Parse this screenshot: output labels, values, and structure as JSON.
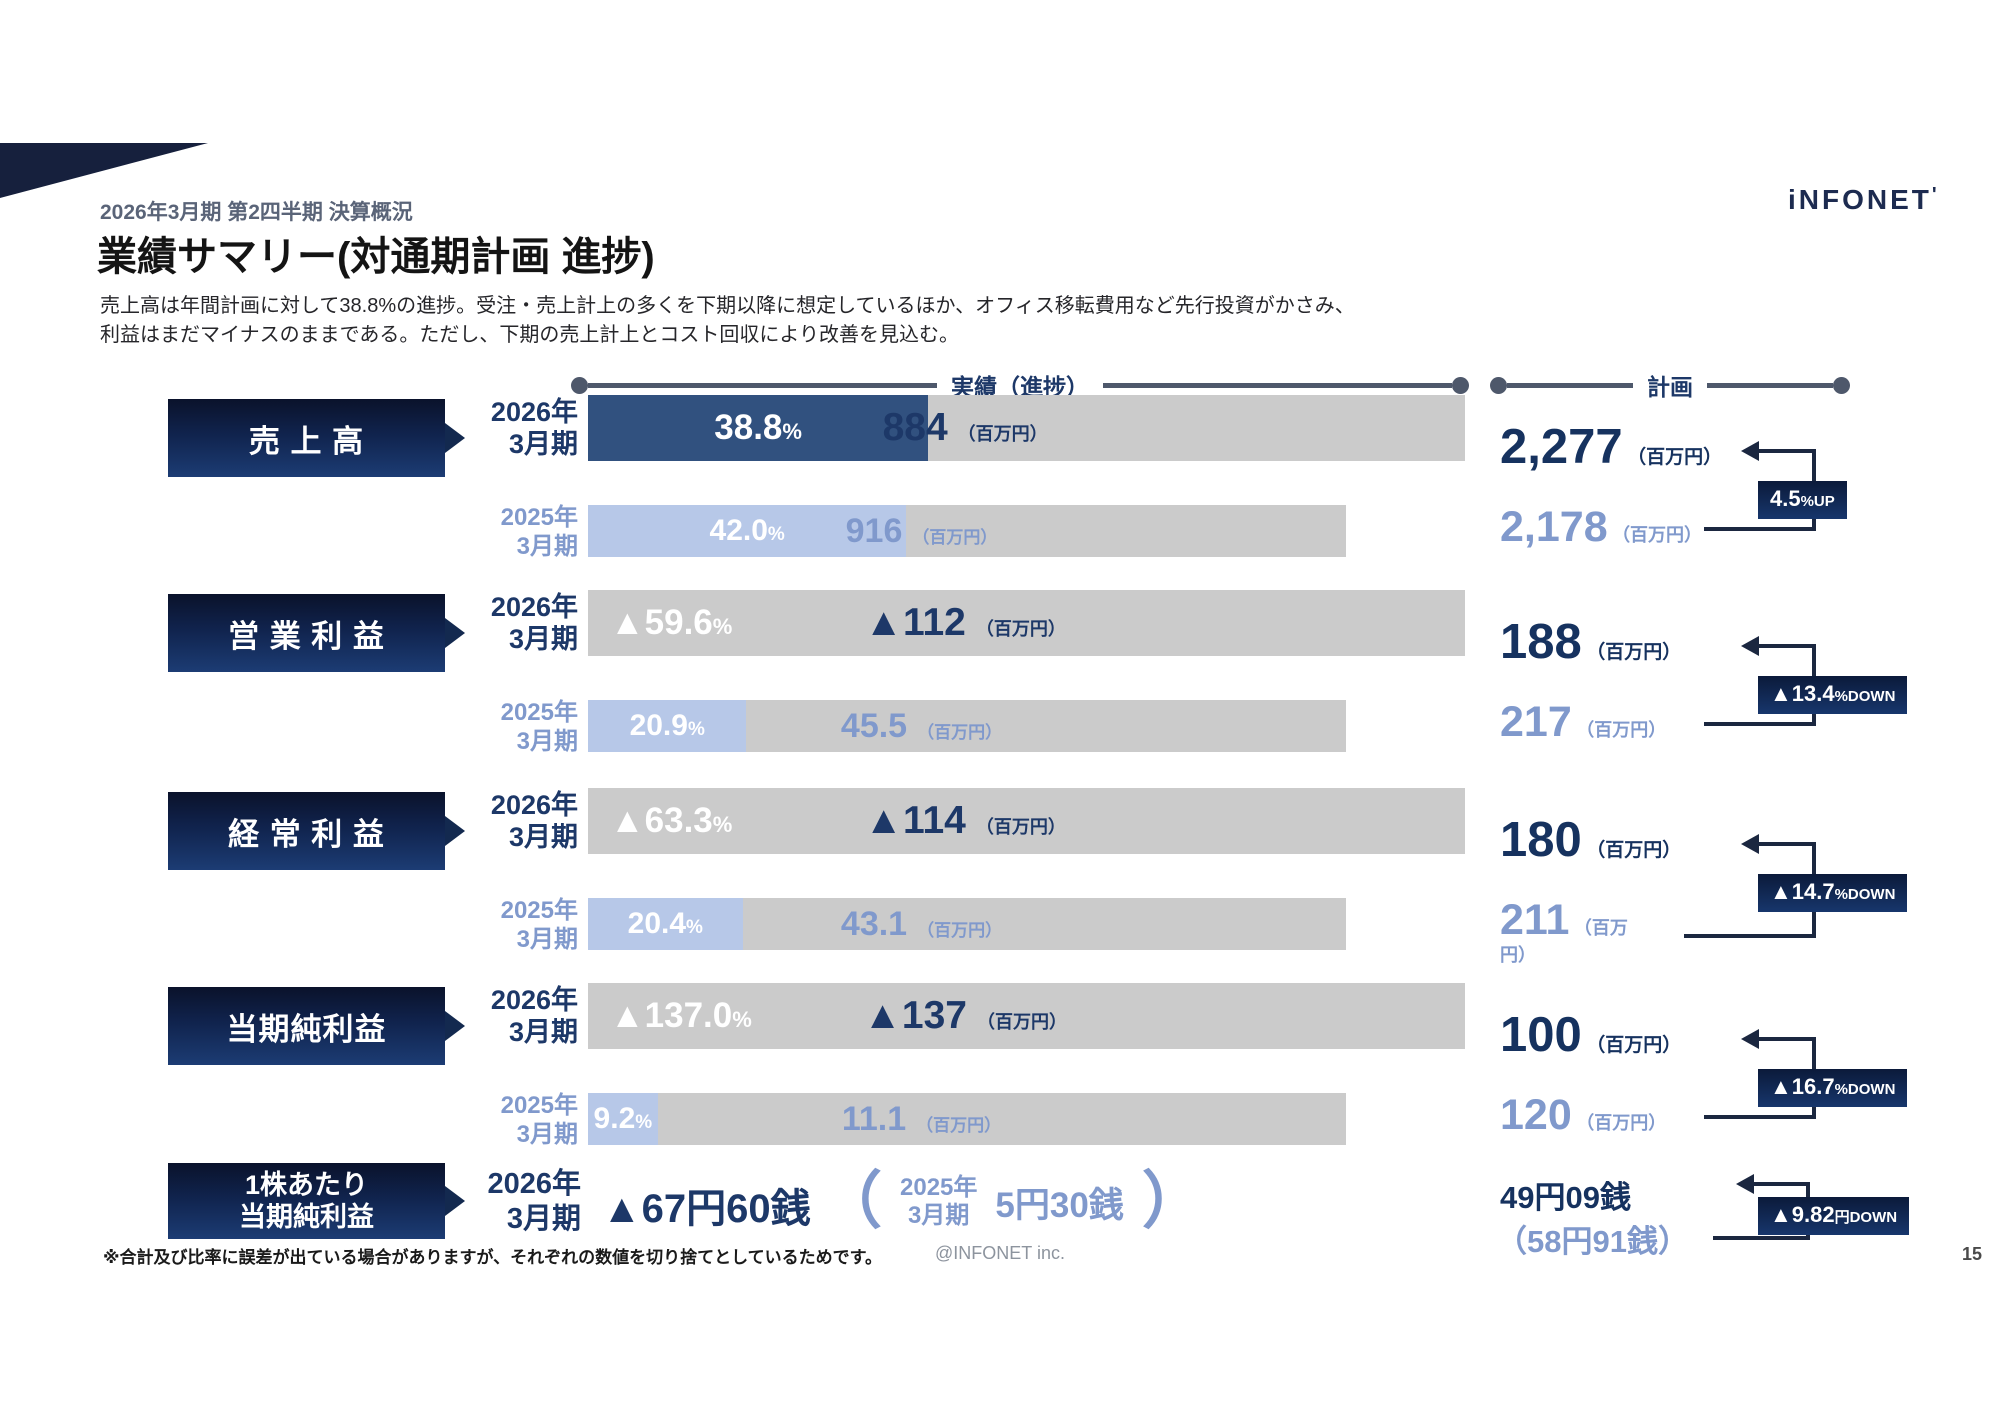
{
  "header": {
    "subtitle": "2026年3月期 第2四半期 決算概況",
    "title": "業績サマリー(対通期計画 進捗)",
    "logo": "iNFONET",
    "description_line1": "売上高は年間計画に対して38.8%の進捗。受注・売上計上の多くを下期以降に想定しているほか、オフィス移転費用など先行投資がかさみ、",
    "description_line2": "利益はまだマイナスのままである。ただし、下期の売上計上とコスト回収により改善を見込む。"
  },
  "legend": {
    "actual": "実績（進捗）",
    "plan": "計画"
  },
  "rows": [
    {
      "label": "売 上 高",
      "fy2026": {
        "year_line1": "2026年",
        "year_line2": "3月期",
        "pct": "38.8",
        "pct_unit": "%",
        "value": "884",
        "value_unit": "（百万円）",
        "fill_pct": 38.8
      },
      "fy2025": {
        "year_line1": "2025年",
        "year_line2": "3月期",
        "pct": "42.0",
        "pct_unit": "%",
        "value": "916",
        "value_unit": "（百万円）",
        "fill_pct": 42.0
      },
      "plan": {
        "current": "2,277",
        "current_unit": "（百万円）",
        "previous": "2,178",
        "previous_unit": "（百万円）"
      },
      "badge": {
        "main": "4.5",
        "suffix": "%UP"
      }
    },
    {
      "label": "営 業 利 益",
      "fy2026": {
        "year_line1": "2026年",
        "year_line2": "3月期",
        "pct": "▲59.6",
        "pct_unit": "%",
        "value": "▲112",
        "value_unit": "（百万円）",
        "fill_pct": 0
      },
      "fy2025": {
        "year_line1": "2025年",
        "year_line2": "3月期",
        "pct": "20.9",
        "pct_unit": "%",
        "value": "45.5",
        "value_unit": "（百万円）",
        "fill_pct": 20.9
      },
      "plan": {
        "current": "188",
        "current_unit": "（百万円）",
        "previous": "217",
        "previous_unit": "（百万円）"
      },
      "badge": {
        "main": "▲13.4",
        "suffix": "%DOWN"
      }
    },
    {
      "label": "経 常 利 益",
      "fy2026": {
        "year_line1": "2026年",
        "year_line2": "3月期",
        "pct": "▲63.3",
        "pct_unit": "%",
        "value": "▲114",
        "value_unit": "（百万円）",
        "fill_pct": 0
      },
      "fy2025": {
        "year_line1": "2025年",
        "year_line2": "3月期",
        "pct": "20.4",
        "pct_unit": "%",
        "value": "43.1",
        "value_unit": "（百万円）",
        "fill_pct": 20.4
      },
      "plan": {
        "current": "180",
        "current_unit": "（百万円）",
        "previous": "211",
        "previous_unit": "（百万円）"
      },
      "badge": {
        "main": "▲14.7",
        "suffix": "%DOWN"
      }
    },
    {
      "label": "当期純利益",
      "fy2026": {
        "year_line1": "2026年",
        "year_line2": "3月期",
        "pct": "▲137.0",
        "pct_unit": "%",
        "value": "▲137",
        "value_unit": "（百万円）",
        "fill_pct": 0
      },
      "fy2025": {
        "year_line1": "2025年",
        "year_line2": "3月期",
        "pct": "9.2",
        "pct_unit": "%",
        "value": "11.1",
        "value_unit": "（百万円）",
        "fill_pct": 9.2
      },
      "plan": {
        "current": "100",
        "current_unit": "（百万円）",
        "previous": "120",
        "previous_unit": "（百万円）"
      },
      "badge": {
        "main": "▲16.7",
        "suffix": "%DOWN"
      }
    }
  ],
  "eps": {
    "label_line1": "1株あたり",
    "label_line2": "当期純利益",
    "year_line1": "2026年",
    "year_line2": "3月期",
    "value": "▲67円60銭",
    "paren_open": "（",
    "prev_year_line1": "2025年",
    "prev_year_line2": "3月期",
    "prev_value": "5円30銭",
    "paren_close": "）",
    "plan_current": "49円09銭",
    "plan_previous": "（58円91銭）",
    "badge": {
      "main": "▲9.82",
      "suffix": "円DOWN"
    }
  },
  "footer": {
    "note": "※合計及び比率に誤差が出ている場合がありますが、それぞれの数値を切り捨てとしているためです。",
    "credit": "@INFONET inc.",
    "page": "15"
  },
  "colors": {
    "navy_dark": "#0a122b",
    "navy": "#16325f",
    "bar_blue": "#31517f",
    "bar_light_blue": "#b7c8e8",
    "bar_gray": "#cbcbcb",
    "light_blue_text": "#8099cc",
    "legend_line": "#4e586b"
  },
  "chart_data": {
    "type": "bar",
    "title": "業績サマリー(対通期計画 進捗)",
    "categories": [
      "売上高",
      "営業利益",
      "経常利益",
      "当期純利益"
    ],
    "series": [
      {
        "name": "2026年3月期 進捗率(%)",
        "values": [
          38.8,
          -59.6,
          -63.3,
          -137.0
        ]
      },
      {
        "name": "2026年3月期 実績(百万円)",
        "values": [
          884,
          -112,
          -114,
          -137
        ]
      },
      {
        "name": "2025年3月期 進捗率(%)",
        "values": [
          42.0,
          20.9,
          20.4,
          9.2
        ]
      },
      {
        "name": "2025年3月期 実績(百万円)",
        "values": [
          916,
          45.5,
          43.1,
          11.1
        ]
      },
      {
        "name": "2026年3月期 通期計画(百万円)",
        "values": [
          2277,
          188,
          180,
          100
        ]
      },
      {
        "name": "2025年3月期 通期計画(百万円)",
        "values": [
          2178,
          217,
          211,
          120
        ]
      }
    ],
    "plan_change_labels": [
      "4.5%UP",
      "▲13.4%DOWN",
      "▲14.7%DOWN",
      "▲16.7%DOWN"
    ],
    "eps": {
      "fy2026": "▲67円60銭",
      "fy2025": "5円30銭",
      "plan": "49円09銭",
      "plan_prev": "58円91銭",
      "change": "▲9.82円DOWN"
    },
    "legend_position": "top",
    "grid": false
  }
}
